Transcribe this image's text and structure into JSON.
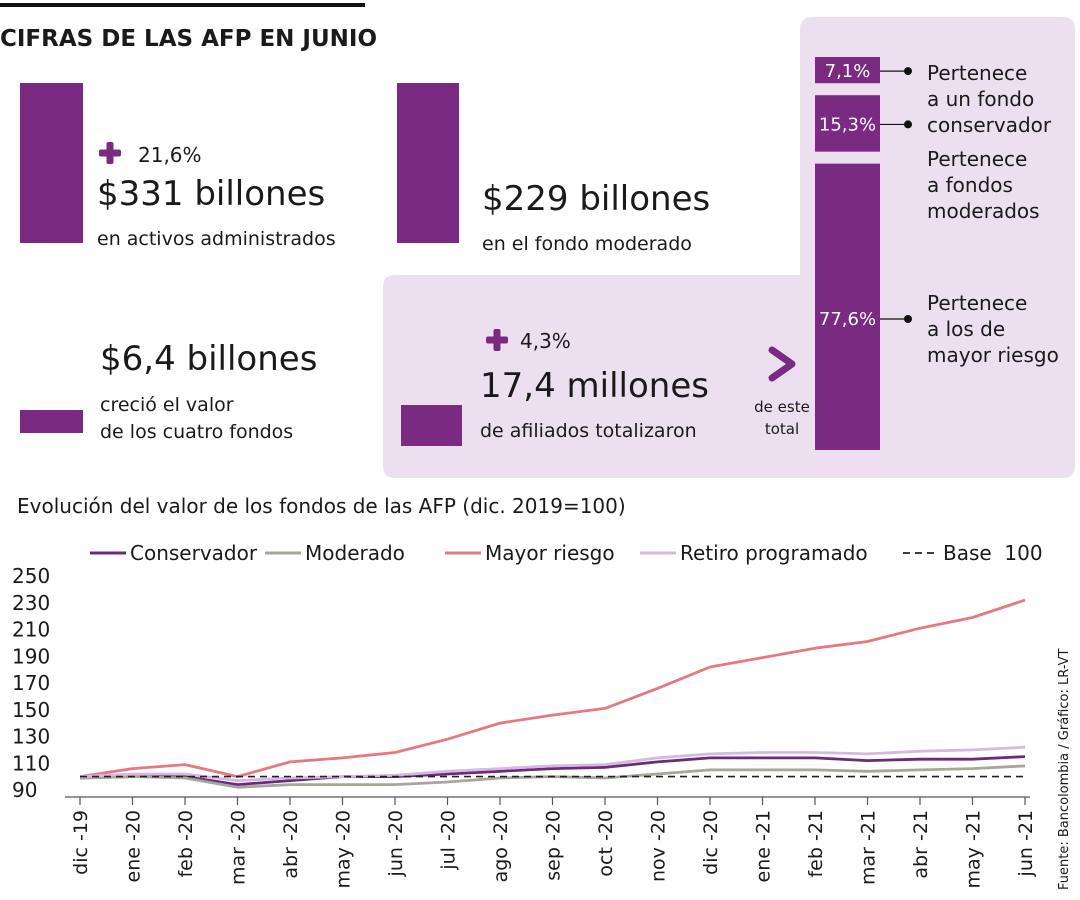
{
  "header": {
    "title": "CIFRAS DE LAS AFP EN JUNIO"
  },
  "stats": [
    {
      "change": "21,6%",
      "value": "$331 billones",
      "caption": [
        "en activos administrados"
      ]
    },
    {
      "value": "$229 billones",
      "caption": [
        "en el fondo moderado"
      ]
    },
    {
      "value": "$6,4 billones",
      "caption": [
        "creció el valor",
        "de los cuatro fondos"
      ]
    },
    {
      "change": "4,3%",
      "value": "17,4 millones",
      "caption": [
        "de afiliados totalizaron"
      ]
    }
  ],
  "breakdown_note": [
    "de este",
    "total"
  ],
  "chart_data": [
    {
      "type": "stacked_bar",
      "series": [
        {
          "label_lines": [
            "Pertenece",
            "a un fondo",
            "conservador"
          ],
          "color": "#7b2a82",
          "values": [
            7.1
          ],
          "value_labels": [
            "7,1%"
          ]
        },
        {
          "label_lines": [
            "Pertenece",
            "a fondos",
            "moderados"
          ],
          "color": "#7b2a82",
          "values": [
            15.3
          ],
          "value_labels": [
            "15,3%"
          ]
        },
        {
          "label_lines": [
            "Pertenece",
            "a los de",
            "mayor riesgo"
          ],
          "color": "#7b2a82",
          "values": [
            77.6
          ],
          "value_labels": [
            "77,6%"
          ]
        }
      ]
    },
    {
      "type": "line",
      "title": "Evolución del valor de los fondos de las AFP (dic. 2019=100)",
      "source": "Fuente: Bancolombia / Gráfico: LR-VT",
      "categories": [
        "dic -19",
        "ene -20",
        "feb -20",
        "mar -20",
        "abr -20",
        "may -20",
        "jun -20",
        "jul -20",
        "ago -20",
        "sep -20",
        "oct -20",
        "nov -20",
        "dic -20",
        "ene -21",
        "feb -21",
        "mar -21",
        "abr -21",
        "may -21",
        "jun -21"
      ],
      "ylim": [
        90,
        250
      ],
      "yticks": [
        90,
        110,
        130,
        150,
        170,
        190,
        210,
        230,
        250
      ],
      "series": [
        {
          "name": "Conservador",
          "color": "#6b2a7a",
          "values": [
            99,
            100,
            100,
            94,
            97,
            100,
            100,
            102,
            104,
            106,
            107,
            111,
            114,
            114,
            114,
            112,
            113,
            113,
            115
          ]
        },
        {
          "name": "Moderado",
          "color": "#a8a59d",
          "values": [
            99,
            100,
            99,
            92,
            94,
            94,
            94,
            96,
            99,
            100,
            99,
            102,
            105,
            105,
            105,
            104,
            105,
            106,
            108
          ]
        },
        {
          "name": "Mayor riesgo",
          "color": "#e8787f",
          "values": [
            100,
            106,
            109,
            100,
            111,
            114,
            118,
            128,
            140,
            146,
            151,
            166,
            182,
            189,
            196,
            201,
            211,
            219,
            232
          ]
        },
        {
          "name": "Retiro programado",
          "color": "#d7b8e0",
          "values": [
            100,
            102,
            102,
            97,
            99,
            100,
            101,
            104,
            106,
            108,
            109,
            114,
            117,
            118,
            118,
            117,
            119,
            120,
            122
          ]
        },
        {
          "name": "Base  100",
          "color": "#222222",
          "dashed": true,
          "values": [
            100,
            100,
            100,
            100,
            100,
            100,
            100,
            100,
            100,
            100,
            100,
            100,
            100,
            100,
            100,
            100,
            100,
            100,
            100
          ]
        }
      ]
    }
  ]
}
